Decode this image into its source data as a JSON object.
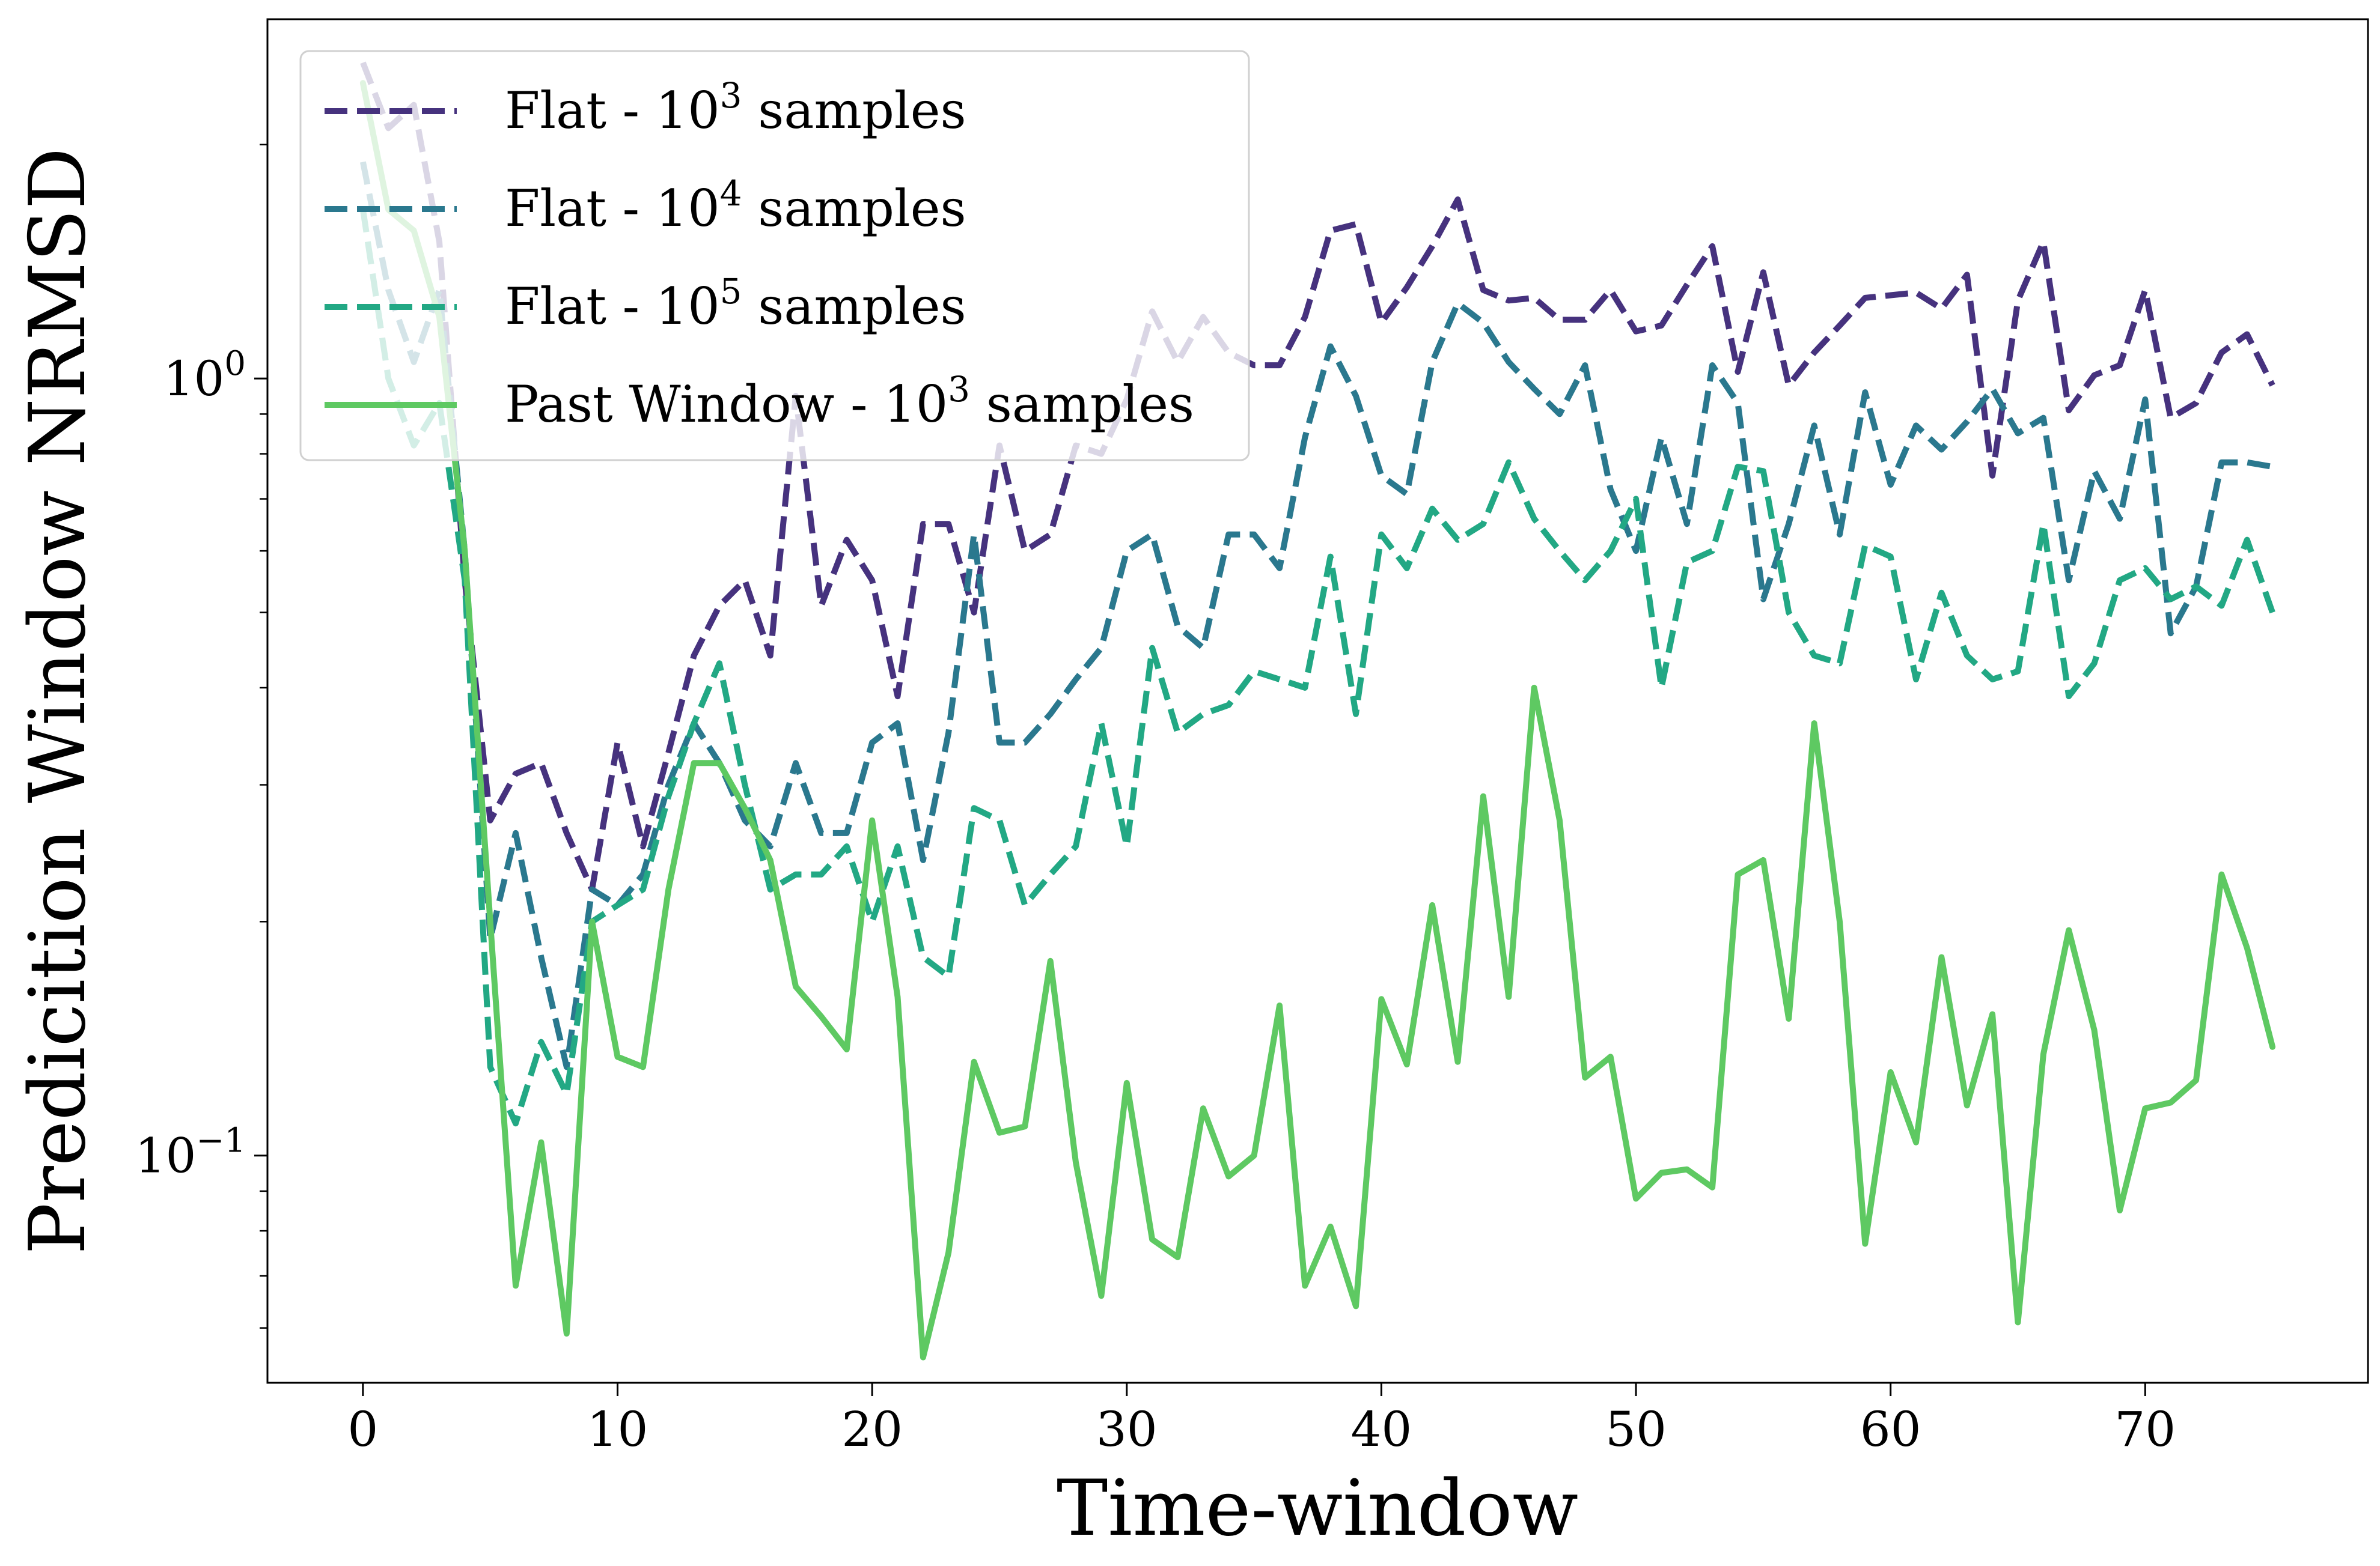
{
  "chart_data": {
    "type": "line",
    "xlabel": "Time-window",
    "ylabel": "Predicition Window NRMSD",
    "yscale": "log",
    "xlim": [
      -3.75,
      78.75
    ],
    "ylim": [
      0.051,
      2.9
    ],
    "x_ticks": [
      0,
      10,
      20,
      30,
      40,
      50,
      60,
      70
    ],
    "x_tick_labels": [
      "0",
      "10",
      "20",
      "30",
      "40",
      "50",
      "60",
      "70"
    ],
    "y_ticks": [
      0.1,
      1
    ],
    "y_tick_labels": [
      {
        "base": "10",
        "exp": "−1"
      },
      {
        "base": "10",
        "exp": "0"
      }
    ],
    "grid": false,
    "legend_position": "upper-left",
    "series": [
      {
        "name": {
          "prefix": "Flat - 10",
          "exp": "3",
          "suffix": " samples"
        },
        "color": "#46327e",
        "style": "dashed",
        "x": [
          0,
          1,
          2,
          3,
          4,
          5,
          6,
          7,
          8,
          9,
          10,
          11,
          12,
          13,
          14,
          15,
          16,
          17,
          18,
          19,
          20,
          21,
          22,
          23,
          24,
          25,
          26,
          27,
          28,
          29,
          30,
          31,
          32,
          33,
          34,
          35,
          36,
          37,
          38,
          39,
          40,
          41,
          42,
          43,
          44,
          45,
          46,
          47,
          48,
          49,
          50,
          51,
          52,
          53,
          54,
          55,
          56,
          57,
          58,
          59,
          60,
          61,
          62,
          63,
          64,
          65,
          66,
          67,
          68,
          69,
          70,
          71,
          72,
          73,
          74,
          75
        ],
        "y": [
          2.55,
          2.1,
          2.25,
          1.5,
          0.55,
          0.27,
          0.31,
          0.32,
          0.26,
          0.22,
          0.34,
          0.25,
          0.33,
          0.44,
          0.51,
          0.55,
          0.44,
          0.95,
          0.51,
          0.62,
          0.55,
          0.39,
          0.65,
          0.65,
          0.5,
          0.82,
          0.6,
          0.63,
          0.82,
          0.8,
          0.94,
          1.22,
          1.05,
          1.2,
          1.08,
          1.04,
          1.04,
          1.2,
          1.55,
          1.58,
          1.18,
          1.31,
          1.48,
          1.7,
          1.3,
          1.26,
          1.27,
          1.19,
          1.19,
          1.3,
          1.15,
          1.17,
          1.32,
          1.48,
          1.02,
          1.37,
          0.98,
          1.08,
          1.17,
          1.27,
          1.28,
          1.29,
          1.23,
          1.36,
          0.75,
          1.26,
          1.5,
          0.91,
          1.01,
          1.04,
          1.3,
          0.89,
          0.93,
          1.08,
          1.14,
          0.98
        ]
      },
      {
        "name": {
          "prefix": "Flat - 10",
          "exp": "4",
          "suffix": " samples"
        },
        "color": "#2a788e",
        "style": "dashed",
        "x": [
          0,
          1,
          2,
          3,
          4,
          5,
          6,
          7,
          8,
          9,
          10,
          11,
          12,
          13,
          14,
          15,
          16,
          17,
          18,
          19,
          20,
          21,
          22,
          23,
          24,
          25,
          26,
          27,
          28,
          29,
          30,
          31,
          32,
          33,
          34,
          35,
          36,
          37,
          38,
          39,
          40,
          41,
          42,
          43,
          44,
          45,
          46,
          47,
          48,
          49,
          50,
          51,
          52,
          53,
          54,
          55,
          56,
          57,
          58,
          59,
          60,
          61,
          62,
          63,
          64,
          65,
          66,
          67,
          68,
          69,
          70,
          71,
          72,
          73,
          74,
          75
        ],
        "y": [
          1.9,
          1.3,
          1.05,
          1.3,
          0.6,
          0.19,
          0.26,
          0.18,
          0.13,
          0.22,
          0.21,
          0.23,
          0.3,
          0.36,
          0.32,
          0.27,
          0.25,
          0.32,
          0.26,
          0.26,
          0.34,
          0.36,
          0.24,
          0.35,
          0.63,
          0.34,
          0.34,
          0.37,
          0.41,
          0.45,
          0.6,
          0.63,
          0.48,
          0.45,
          0.63,
          0.63,
          0.57,
          0.84,
          1.1,
          0.95,
          0.75,
          0.71,
          1.05,
          1.25,
          1.18,
          1.05,
          0.97,
          0.9,
          1.04,
          0.72,
          0.6,
          0.84,
          0.65,
          1.04,
          0.93,
          0.52,
          0.65,
          0.87,
          0.63,
          0.96,
          0.73,
          0.87,
          0.81,
          0.88,
          0.97,
          0.85,
          0.89,
          0.55,
          0.76,
          0.66,
          0.94,
          0.47,
          0.54,
          0.78,
          0.78,
          0.77
        ]
      },
      {
        "name": {
          "prefix": "Flat - 10",
          "exp": "5",
          "suffix": " samples"
        },
        "color": "#22a884",
        "style": "dashed",
        "x": [
          0,
          1,
          2,
          3,
          4,
          5,
          6,
          7,
          8,
          9,
          10,
          11,
          12,
          13,
          14,
          15,
          16,
          17,
          18,
          19,
          20,
          21,
          22,
          23,
          24,
          25,
          26,
          27,
          28,
          29,
          30,
          31,
          32,
          33,
          34,
          35,
          36,
          37,
          38,
          39,
          40,
          41,
          42,
          43,
          44,
          45,
          46,
          47,
          48,
          49,
          50,
          51,
          52,
          53,
          54,
          55,
          56,
          57,
          58,
          59,
          60,
          61,
          62,
          63,
          64,
          65,
          66,
          67,
          68,
          69,
          70,
          71,
          72,
          73,
          74,
          75
        ],
        "y": [
          1.65,
          1.0,
          0.82,
          0.93,
          0.55,
          0.13,
          0.11,
          0.14,
          0.12,
          0.2,
          0.21,
          0.22,
          0.29,
          0.36,
          0.43,
          0.3,
          0.22,
          0.23,
          0.23,
          0.25,
          0.2,
          0.25,
          0.18,
          0.17,
          0.28,
          0.27,
          0.21,
          0.23,
          0.25,
          0.36,
          0.25,
          0.45,
          0.35,
          0.37,
          0.38,
          0.42,
          0.41,
          0.4,
          0.59,
          0.37,
          0.63,
          0.57,
          0.68,
          0.62,
          0.65,
          0.78,
          0.66,
          0.6,
          0.55,
          0.6,
          0.7,
          0.4,
          0.58,
          0.6,
          0.77,
          0.76,
          0.5,
          0.44,
          0.43,
          0.61,
          0.59,
          0.41,
          0.53,
          0.44,
          0.41,
          0.42,
          0.65,
          0.39,
          0.43,
          0.55,
          0.57,
          0.52,
          0.54,
          0.51,
          0.62,
          0.5
        ]
      },
      {
        "name": {
          "prefix": "Past Window - 10",
          "exp": "3",
          "suffix": " samples"
        },
        "color": "#5ec962",
        "style": "solid",
        "x": [
          0,
          1,
          2,
          3,
          4,
          5,
          6,
          7,
          8,
          9,
          10,
          11,
          12,
          13,
          14,
          15,
          16,
          17,
          18,
          19,
          20,
          21,
          22,
          23,
          24,
          25,
          26,
          27,
          28,
          29,
          30,
          31,
          32,
          33,
          34,
          35,
          36,
          37,
          38,
          39,
          40,
          41,
          42,
          43,
          44,
          45,
          46,
          47,
          48,
          49,
          50,
          51,
          52,
          53,
          54,
          55,
          56,
          57,
          58,
          59,
          60,
          61,
          62,
          63,
          64,
          65,
          66,
          67,
          68,
          69,
          70,
          71,
          72,
          73,
          74,
          75
        ],
        "y": [
          2.4,
          1.65,
          1.55,
          1.2,
          0.6,
          0.2,
          0.068,
          0.104,
          0.059,
          0.2,
          0.134,
          0.13,
          0.22,
          0.32,
          0.32,
          0.28,
          0.24,
          0.165,
          0.151,
          0.137,
          0.27,
          0.16,
          0.055,
          0.075,
          0.132,
          0.107,
          0.109,
          0.178,
          0.098,
          0.066,
          0.124,
          0.078,
          0.074,
          0.115,
          0.094,
          0.1,
          0.156,
          0.068,
          0.081,
          0.064,
          0.159,
          0.131,
          0.21,
          0.132,
          0.29,
          0.16,
          0.4,
          0.27,
          0.126,
          0.134,
          0.088,
          0.095,
          0.096,
          0.091,
          0.23,
          0.24,
          0.15,
          0.36,
          0.2,
          0.077,
          0.128,
          0.104,
          0.18,
          0.116,
          0.152,
          0.061,
          0.135,
          0.195,
          0.145,
          0.085,
          0.115,
          0.117,
          0.125,
          0.23,
          0.185,
          0.138
        ]
      }
    ]
  }
}
